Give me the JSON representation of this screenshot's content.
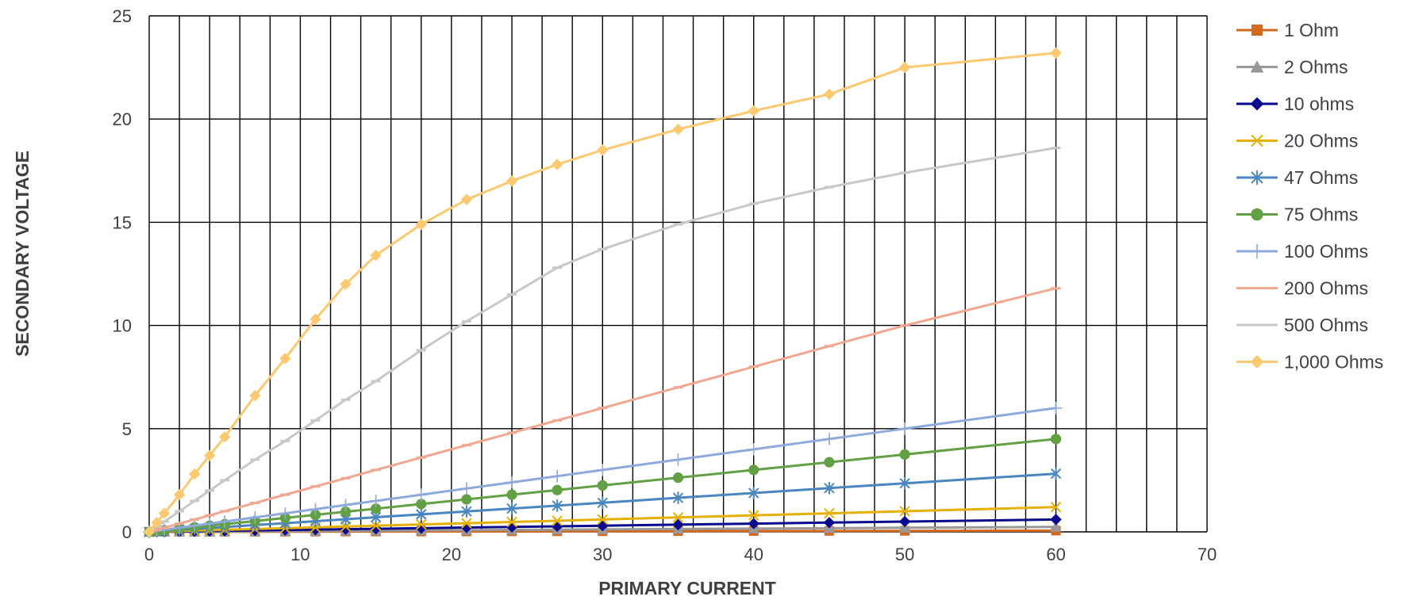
{
  "chart_data": {
    "type": "line",
    "title": "",
    "xlabel": "PRIMARY CURRENT",
    "ylabel": "SECONDARY VOLTAGE",
    "xlim": [
      0,
      70
    ],
    "ylim": [
      0,
      25
    ],
    "x_ticks": [
      0,
      10,
      20,
      30,
      40,
      50,
      60,
      70
    ],
    "y_ticks": [
      0,
      5,
      10,
      15,
      20,
      25
    ],
    "x_gridline_step": 2,
    "y_gridline_step": 5,
    "grid": true,
    "legend_position": "right",
    "x": [
      0,
      0.5,
      1,
      2,
      3,
      4,
      5,
      7,
      9,
      11,
      13,
      15,
      18,
      21,
      24,
      27,
      30,
      35,
      40,
      45,
      50,
      60
    ],
    "series": [
      {
        "name": "1 Ohm",
        "color": "#d2691e",
        "marker": "square",
        "values": [
          0,
          0.001,
          0.001,
          0.002,
          0.003,
          0.004,
          0.005,
          0.007,
          0.009,
          0.011,
          0.013,
          0.015,
          0.018,
          0.021,
          0.024,
          0.027,
          0.03,
          0.035,
          0.04,
          0.045,
          0.05,
          0.06
        ]
      },
      {
        "name": "2 Ohms",
        "color": "#999999",
        "marker": "triangle",
        "values": [
          0,
          0.002,
          0.004,
          0.008,
          0.012,
          0.016,
          0.02,
          0.028,
          0.036,
          0.044,
          0.052,
          0.06,
          0.072,
          0.084,
          0.096,
          0.108,
          0.12,
          0.14,
          0.16,
          0.18,
          0.2,
          0.24
        ]
      },
      {
        "name": "10 ohms",
        "color": "#0a0a8c",
        "marker": "diamond",
        "values": [
          0,
          0.005,
          0.01,
          0.02,
          0.03,
          0.04,
          0.05,
          0.07,
          0.09,
          0.11,
          0.13,
          0.15,
          0.18,
          0.21,
          0.24,
          0.27,
          0.3,
          0.35,
          0.4,
          0.45,
          0.5,
          0.6
        ]
      },
      {
        "name": "20 Ohms",
        "color": "#e6b000",
        "marker": "x",
        "values": [
          0,
          0.01,
          0.02,
          0.04,
          0.06,
          0.08,
          0.1,
          0.14,
          0.18,
          0.22,
          0.26,
          0.3,
          0.36,
          0.42,
          0.48,
          0.54,
          0.6,
          0.7,
          0.8,
          0.9,
          1.0,
          1.2
        ]
      },
      {
        "name": "47 Ohms",
        "color": "#4a86c0",
        "marker": "star",
        "values": [
          0,
          0.024,
          0.047,
          0.094,
          0.141,
          0.188,
          0.235,
          0.33,
          0.42,
          0.52,
          0.61,
          0.71,
          0.85,
          0.99,
          1.13,
          1.27,
          1.41,
          1.65,
          1.88,
          2.12,
          2.35,
          2.82
        ]
      },
      {
        "name": "75 Ohms",
        "color": "#62a043",
        "marker": "circle",
        "values": [
          0,
          0.04,
          0.075,
          0.15,
          0.225,
          0.3,
          0.375,
          0.525,
          0.675,
          0.825,
          0.975,
          1.125,
          1.35,
          1.575,
          1.8,
          2.025,
          2.25,
          2.625,
          3.0,
          3.375,
          3.75,
          4.5
        ]
      },
      {
        "name": "100 Ohms",
        "color": "#8ea9dc",
        "marker": "plus",
        "values": [
          0,
          0.05,
          0.1,
          0.2,
          0.3,
          0.4,
          0.5,
          0.7,
          0.9,
          1.1,
          1.3,
          1.5,
          1.8,
          2.1,
          2.4,
          2.7,
          3.0,
          3.5,
          4.0,
          4.5,
          5.0,
          6.0
        ]
      },
      {
        "name": "200 Ohms",
        "color": "#f0a890",
        "marker": "dash",
        "values": [
          0,
          0.1,
          0.2,
          0.4,
          0.6,
          0.8,
          1.0,
          1.4,
          1.8,
          2.2,
          2.6,
          3.0,
          3.6,
          4.2,
          4.8,
          5.4,
          6.0,
          7.0,
          8.0,
          9.0,
          10.0,
          11.8
        ]
      },
      {
        "name": "500 Ohms",
        "color": "#c8c8c8",
        "marker": "dash",
        "values": [
          0,
          0.25,
          0.5,
          1.0,
          1.5,
          2.0,
          2.5,
          3.5,
          4.4,
          5.4,
          6.4,
          7.3,
          8.8,
          10.2,
          11.5,
          12.8,
          13.7,
          14.9,
          15.9,
          16.7,
          17.4,
          18.6
        ]
      },
      {
        "name": "1,000 Ohms",
        "color": "#fcc970",
        "marker": "diamond",
        "values": [
          0,
          0.45,
          0.9,
          1.8,
          2.8,
          3.7,
          4.6,
          6.6,
          8.4,
          10.3,
          12.0,
          13.4,
          14.9,
          16.1,
          17.0,
          17.8,
          18.5,
          19.5,
          20.4,
          21.2,
          22.5,
          23.2
        ]
      }
    ]
  }
}
